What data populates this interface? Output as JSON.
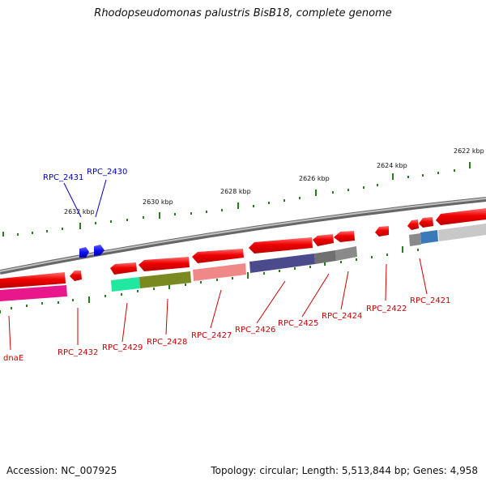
{
  "title": "Rhodopseudomonas palustris BisB18, complete genome",
  "footer": {
    "accession": "Accession: NC_007925",
    "summary": "Topology: circular; Length: 5,513,844 bp; Genes: 4,958"
  },
  "scale": {
    "labels": [
      "2622 kbp",
      "2624 kbp",
      "2626 kbp",
      "2628 kbp",
      "2630 kbp",
      "2632 kbp"
    ]
  },
  "genes": [
    {
      "name": "dnaE",
      "strand": "reverse"
    },
    {
      "name": "RPC_2432",
      "strand": "reverse"
    },
    {
      "name": "RPC_2431",
      "strand": "forward"
    },
    {
      "name": "RPC_2430",
      "strand": "forward"
    },
    {
      "name": "RPC_2429",
      "strand": "reverse"
    },
    {
      "name": "RPC_2428",
      "strand": "reverse"
    },
    {
      "name": "RPC_2427",
      "strand": "reverse"
    },
    {
      "name": "RPC_2426",
      "strand": "reverse"
    },
    {
      "name": "RPC_2425",
      "strand": "reverse"
    },
    {
      "name": "RPC_2424",
      "strand": "reverse"
    },
    {
      "name": "RPC_2422",
      "strand": "reverse"
    },
    {
      "name": "RPC_2421",
      "strand": "reverse"
    }
  ],
  "colors": {
    "reverse_label": "#cc0000",
    "forward_label": "#0000cc",
    "gene_red": "#ee0000",
    "gene_blue": "#1010ee",
    "tick_green": "#2a7d1e",
    "backbone": "#888888",
    "cog_magenta": "#e8188c",
    "cog_teal": "#20e8a0",
    "cog_olive": "#7a8a20",
    "cog_salmon": "#f08888",
    "cog_indigo": "#4a4a8c",
    "cog_darkgray": "#707070",
    "cog_gray": "#8a8a8a",
    "cog_steelblue": "#3a7ab8",
    "cog_lightgray": "#c8c8c8"
  }
}
